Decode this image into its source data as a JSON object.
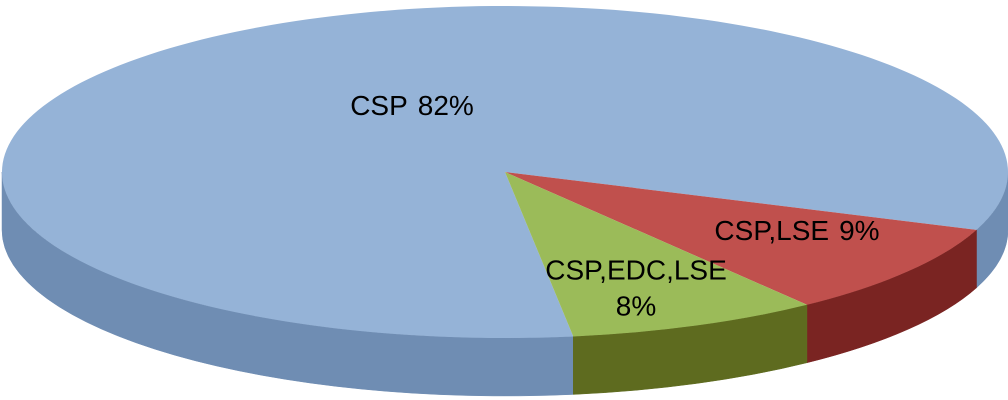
{
  "chart_data": {
    "type": "pie",
    "categories": [
      "CSP",
      "CSP,LSE",
      "CSP,EDC,LSE"
    ],
    "values": [
      82,
      9,
      8
    ],
    "value_labels": [
      "82%",
      "9%",
      "8%"
    ],
    "colors": [
      "#95b3d7",
      "#c0504d",
      "#9bbb59"
    ],
    "side_colors": [
      "#6f8db3",
      "#7a2422",
      "#5e6b1f"
    ]
  }
}
